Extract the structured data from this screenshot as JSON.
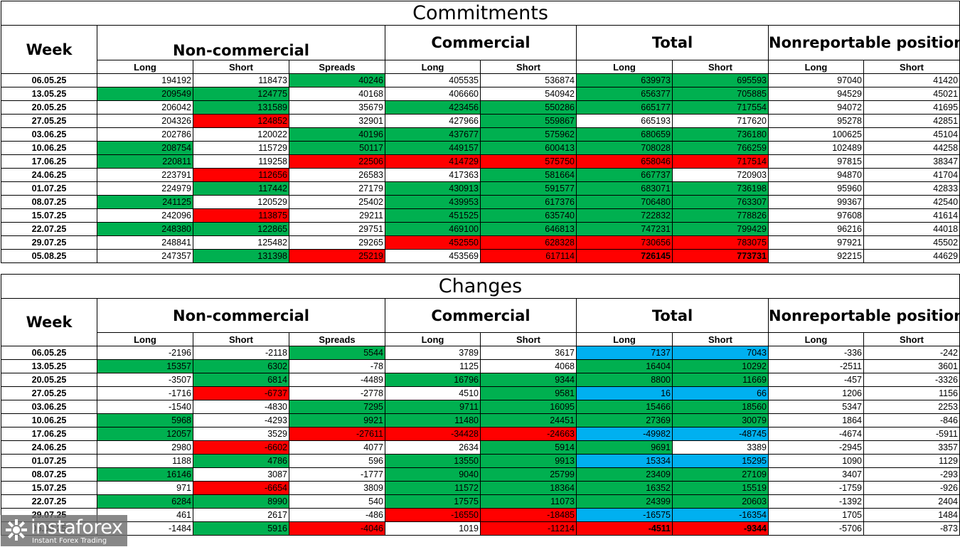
{
  "commitments": {
    "title": "Commitments",
    "week_label": "Week",
    "groups": [
      "Non-commercial",
      "Commercial",
      "Total",
      "Nonreportable positions"
    ],
    "subheaders": [
      "Long",
      "Short",
      "Spreads",
      "Long",
      "Short",
      "Long",
      "Short",
      "Long",
      "Short"
    ],
    "rows": [
      {
        "week": "06.05.25",
        "values": [
          "194192",
          "118473",
          "40246",
          "405535",
          "536874",
          "639973",
          "695593",
          "97040",
          "41420"
        ],
        "colors": [
          "",
          "",
          "g",
          "",
          "",
          "g",
          "g",
          "",
          ""
        ]
      },
      {
        "week": "13.05.25",
        "values": [
          "209549",
          "124775",
          "40168",
          "406660",
          "540942",
          "656377",
          "705885",
          "94529",
          "45021"
        ],
        "colors": [
          "g",
          "g",
          "",
          "",
          "",
          "g",
          "g",
          "",
          ""
        ]
      },
      {
        "week": "20.05.25",
        "values": [
          "206042",
          "131589",
          "35679",
          "423456",
          "550286",
          "665177",
          "717554",
          "94072",
          "41695"
        ],
        "colors": [
          "",
          "g",
          "",
          "g",
          "g",
          "g",
          "g",
          "",
          ""
        ]
      },
      {
        "week": "27.05.25",
        "values": [
          "204326",
          "124852",
          "32901",
          "427966",
          "559867",
          "665193",
          "717620",
          "95278",
          "42851"
        ],
        "colors": [
          "",
          "r",
          "",
          "",
          "g",
          "",
          "",
          "",
          ""
        ]
      },
      {
        "week": "03.06.25",
        "values": [
          "202786",
          "120022",
          "40196",
          "437677",
          "575962",
          "680659",
          "736180",
          "100625",
          "45104"
        ],
        "colors": [
          "",
          "",
          "g",
          "g",
          "g",
          "g",
          "g",
          "",
          ""
        ]
      },
      {
        "week": "10.06.25",
        "values": [
          "208754",
          "115729",
          "50117",
          "449157",
          "600413",
          "708028",
          "766259",
          "102489",
          "44258"
        ],
        "colors": [
          "g",
          "",
          "g",
          "g",
          "g",
          "g",
          "g",
          "",
          ""
        ]
      },
      {
        "week": "17.06.25",
        "values": [
          "220811",
          "119258",
          "22506",
          "414729",
          "575750",
          "658046",
          "717514",
          "97815",
          "38347"
        ],
        "colors": [
          "g",
          "",
          "r",
          "r",
          "r",
          "r",
          "r",
          "",
          ""
        ]
      },
      {
        "week": "24.06.25",
        "values": [
          "223791",
          "112656",
          "26583",
          "417363",
          "581664",
          "667737",
          "720903",
          "94870",
          "41704"
        ],
        "colors": [
          "",
          "r",
          "",
          "",
          "g",
          "g",
          "",
          "",
          ""
        ]
      },
      {
        "week": "01.07.25",
        "values": [
          "224979",
          "117442",
          "27179",
          "430913",
          "591577",
          "683071",
          "736198",
          "95960",
          "42833"
        ],
        "colors": [
          "",
          "g",
          "",
          "g",
          "g",
          "g",
          "g",
          "",
          ""
        ]
      },
      {
        "week": "08.07.25",
        "values": [
          "241125",
          "120529",
          "25402",
          "439953",
          "617376",
          "706480",
          "763307",
          "99367",
          "42540"
        ],
        "colors": [
          "g",
          "",
          "",
          "g",
          "g",
          "g",
          "g",
          "",
          ""
        ]
      },
      {
        "week": "15.07.25",
        "values": [
          "242096",
          "113875",
          "29211",
          "451525",
          "635740",
          "722832",
          "778826",
          "97608",
          "41614"
        ],
        "colors": [
          "",
          "r",
          "",
          "g",
          "g",
          "g",
          "g",
          "",
          ""
        ]
      },
      {
        "week": "22.07.25",
        "values": [
          "248380",
          "122865",
          "29751",
          "469100",
          "646813",
          "747231",
          "799429",
          "96216",
          "44018"
        ],
        "colors": [
          "g",
          "g",
          "",
          "g",
          "g",
          "g",
          "g",
          "",
          ""
        ]
      },
      {
        "week": "29.07.25",
        "values": [
          "248841",
          "125482",
          "29265",
          "452550",
          "628328",
          "730656",
          "783075",
          "97921",
          "45502"
        ],
        "colors": [
          "",
          "",
          "",
          "r",
          "r",
          "r",
          "r",
          "",
          ""
        ]
      },
      {
        "week": "05.08.25",
        "values": [
          "247357",
          "131398",
          "25219",
          "453569",
          "617114",
          "726145",
          "773731",
          "92215",
          "44629"
        ],
        "colors": [
          "",
          "g",
          "r",
          "",
          "r",
          "r",
          "r",
          "",
          ""
        ],
        "bold": [
          false,
          false,
          false,
          false,
          false,
          true,
          true,
          false,
          false
        ]
      }
    ]
  },
  "changes": {
    "title": "Changes",
    "week_label": "Week",
    "groups": [
      "Non-commercial",
      "Commercial",
      "Total",
      "Nonreportable positions"
    ],
    "subheaders": [
      "Long",
      "Short",
      "Spreads",
      "Long",
      "Short",
      "Long",
      "Short",
      "Long",
      "Short"
    ],
    "rows": [
      {
        "week": "06.05.25",
        "values": [
          "-2196",
          "-2118",
          "5544",
          "3789",
          "3617",
          "7137",
          "7043",
          "-336",
          "-242"
        ],
        "colors": [
          "",
          "",
          "g",
          "",
          "",
          "b",
          "b",
          "",
          ""
        ]
      },
      {
        "week": "13.05.25",
        "values": [
          "15357",
          "6302",
          "-78",
          "1125",
          "4068",
          "16404",
          "10292",
          "-2511",
          "3601"
        ],
        "colors": [
          "g",
          "g",
          "",
          "",
          "",
          "g",
          "g",
          "",
          ""
        ]
      },
      {
        "week": "20.05.25",
        "values": [
          "-3507",
          "6814",
          "-4489",
          "16796",
          "9344",
          "8800",
          "11669",
          "-457",
          "-3326"
        ],
        "colors": [
          "",
          "g",
          "",
          "g",
          "g",
          "g",
          "g",
          "",
          ""
        ]
      },
      {
        "week": "27.05.25",
        "values": [
          "-1716",
          "-6737",
          "-2778",
          "4510",
          "9581",
          "16",
          "66",
          "1206",
          "1156"
        ],
        "colors": [
          "",
          "r",
          "",
          "",
          "g",
          "b",
          "b",
          "",
          ""
        ]
      },
      {
        "week": "03.06.25",
        "values": [
          "-1540",
          "-4830",
          "7295",
          "9711",
          "16095",
          "15466",
          "18560",
          "5347",
          "2253"
        ],
        "colors": [
          "",
          "",
          "g",
          "g",
          "g",
          "g",
          "g",
          "",
          ""
        ]
      },
      {
        "week": "10.06.25",
        "values": [
          "5968",
          "-4293",
          "9921",
          "11480",
          "24451",
          "27369",
          "30079",
          "1864",
          "-846"
        ],
        "colors": [
          "g",
          "",
          "g",
          "g",
          "g",
          "g",
          "g",
          "",
          ""
        ]
      },
      {
        "week": "17.06.25",
        "values": [
          "12057",
          "3529",
          "-27611",
          "-34428",
          "-24663",
          "-49982",
          "-48745",
          "-4674",
          "-5911"
        ],
        "colors": [
          "g",
          "",
          "r",
          "r",
          "r",
          "b",
          "b",
          "",
          ""
        ]
      },
      {
        "week": "24.06.25",
        "values": [
          "2980",
          "-6602",
          "4077",
          "2634",
          "5914",
          "9691",
          "3389",
          "-2945",
          "3357"
        ],
        "colors": [
          "",
          "r",
          "",
          "",
          "g",
          "g",
          "",
          "",
          ""
        ]
      },
      {
        "week": "01.07.25",
        "values": [
          "1188",
          "4786",
          "596",
          "13550",
          "9913",
          "15334",
          "15295",
          "1090",
          "1129"
        ],
        "colors": [
          "",
          "g",
          "",
          "g",
          "g",
          "b",
          "b",
          "",
          ""
        ]
      },
      {
        "week": "08.07.25",
        "values": [
          "16146",
          "3087",
          "-1777",
          "9040",
          "25799",
          "23409",
          "27109",
          "3407",
          "-293"
        ],
        "colors": [
          "g",
          "",
          "",
          "g",
          "g",
          "g",
          "g",
          "",
          ""
        ]
      },
      {
        "week": "15.07.25",
        "values": [
          "971",
          "-6654",
          "3809",
          "11572",
          "18364",
          "16352",
          "15519",
          "-1759",
          "-926"
        ],
        "colors": [
          "",
          "r",
          "",
          "g",
          "g",
          "g",
          "g",
          "",
          ""
        ]
      },
      {
        "week": "22.07.25",
        "values": [
          "6284",
          "8990",
          "540",
          "17575",
          "11073",
          "24399",
          "20603",
          "-1392",
          "2404"
        ],
        "colors": [
          "g",
          "g",
          "",
          "g",
          "g",
          "g",
          "g",
          "",
          ""
        ]
      },
      {
        "week": "29.07.25",
        "values": [
          "461",
          "2617",
          "-486",
          "-16550",
          "-18485",
          "-16575",
          "-16354",
          "1705",
          "1484"
        ],
        "colors": [
          "",
          "",
          "",
          "r",
          "r",
          "b",
          "b",
          "",
          ""
        ]
      },
      {
        "week": "05.08.25",
        "values": [
          "-1484",
          "5916",
          "-4046",
          "1019",
          "-11214",
          "-4511",
          "-9344",
          "-5706",
          "-873"
        ],
        "colors": [
          "",
          "g",
          "r",
          "",
          "r",
          "r",
          "r",
          "",
          ""
        ],
        "bold": [
          false,
          false,
          false,
          false,
          false,
          true,
          true,
          false,
          false
        ]
      }
    ]
  },
  "watermark": {
    "brand": "instaforex",
    "tagline": "Instant Forex Trading"
  },
  "palette": {
    "green": "#00b050",
    "red": "#ff0000",
    "blue": "#00b0f0"
  }
}
